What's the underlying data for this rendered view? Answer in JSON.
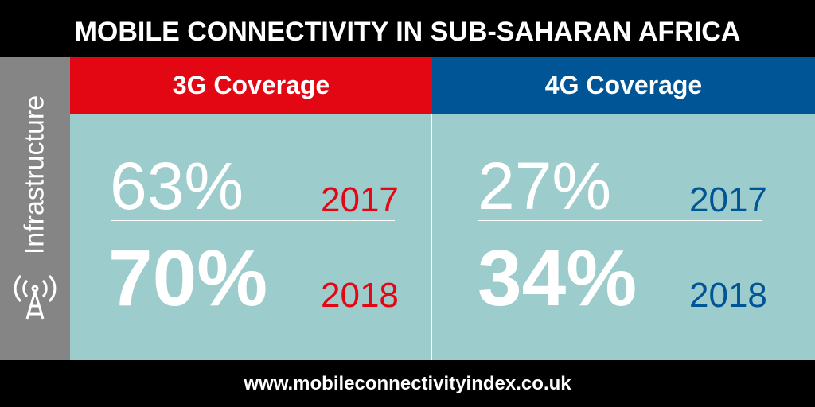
{
  "header": {
    "title": "MOBILE CONNECTIVITY IN SUB-SAHARAN AFRICA"
  },
  "sidebar": {
    "label": "Infrastructure"
  },
  "panels": [
    {
      "title": "3G Coverage",
      "rows": [
        {
          "value": "63%",
          "year": "2017"
        },
        {
          "value": "70%",
          "year": "2018"
        }
      ]
    },
    {
      "title": "4G Coverage",
      "rows": [
        {
          "value": "27%",
          "year": "2017"
        },
        {
          "value": "34%",
          "year": "2018"
        }
      ]
    }
  ],
  "footer": {
    "url": "www.mobileconnectivityindex.co.uk"
  }
}
